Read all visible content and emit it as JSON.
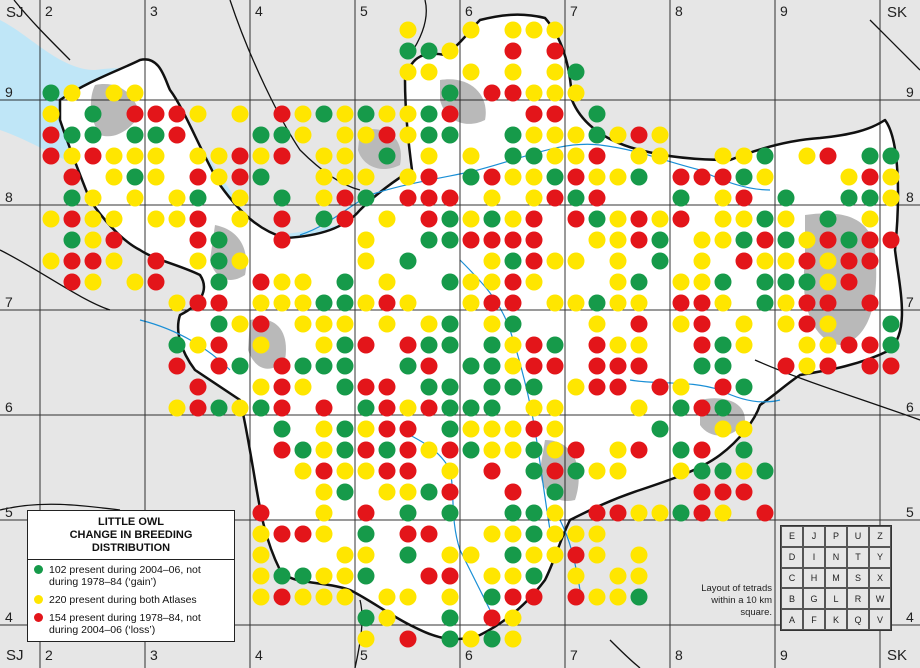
{
  "map": {
    "corner_labels": {
      "top_left": "SJ",
      "top_right": "SK",
      "bottom_left": "SJ",
      "bottom_right": "SK"
    },
    "eastings": [
      "2",
      "3",
      "4",
      "5",
      "6",
      "7",
      "8",
      "9"
    ],
    "northings": [
      "9",
      "8",
      "7",
      "6",
      "5",
      "4"
    ],
    "colors": {
      "gain": "#169a4a",
      "both": "#ffe600",
      "loss": "#e3151a",
      "water": "#bfe6f7",
      "county": "#ffffff",
      "urban": "#b9b9b9",
      "background": "#e6e6e6"
    }
  },
  "legend": {
    "title_line1": "LITTLE OWL",
    "title_line2": "CHANGE IN BREEDING DISTRIBUTION",
    "gain_text": "102 present during 2004–06, not during 1978–84 (‘gain’)",
    "both_text": "220 present during both Atlases",
    "loss_text": "154 present during 1978–84, not during 2004–06 (‘loss’)"
  },
  "tetrad_key": {
    "caption": "Layout of tetrads within a 10 km square.",
    "rows": [
      [
        "E",
        "J",
        "P",
        "U",
        "Z"
      ],
      [
        "D",
        "I",
        "N",
        "T",
        "Y"
      ],
      [
        "C",
        "H",
        "M",
        "S",
        "X"
      ],
      [
        "B",
        "G",
        "L",
        "R",
        "W"
      ],
      [
        "A",
        "F",
        "K",
        "Q",
        "V"
      ]
    ]
  }
}
